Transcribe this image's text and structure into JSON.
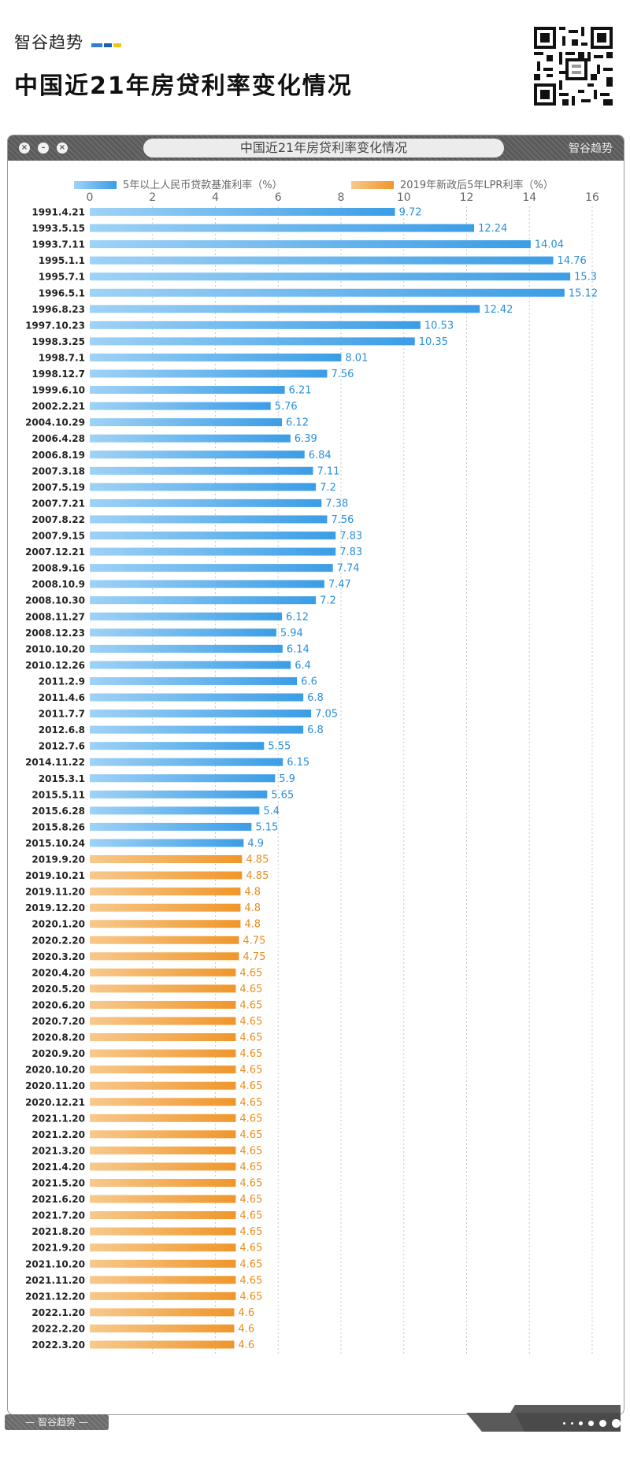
{
  "header": {
    "brand_name": "智谷趋势",
    "title": "中国近21年房贷利率变化情况"
  },
  "window": {
    "title": "中国近21年房贷利率变化情况",
    "logo_text": "智谷趋势",
    "footer_brand": "— 智谷趋势 —"
  },
  "colors": {
    "blue": "#3b9de6",
    "blue_light": "#9fd2f6",
    "orange": "#f0962a",
    "orange_light": "#f7c98d",
    "label_blue": "#2a8fdc",
    "label_orange": "#e98d1e"
  },
  "chart_data": {
    "type": "bar",
    "orientation": "horizontal",
    "xlim": [
      0,
      16
    ],
    "xticks": [
      0,
      2,
      4,
      6,
      8,
      10,
      12,
      14,
      16
    ],
    "grid": true,
    "legend_position": "top",
    "series": [
      {
        "name": "5年以上人民币贷款基准利率（%）",
        "color": "#3b9de6",
        "categories": [
          "1991.4.21",
          "1993.5.15",
          "1993.7.11",
          "1995.1.1",
          "1995.7.1",
          "1996.5.1",
          "1996.8.23",
          "1997.10.23",
          "1998.3.25",
          "1998.7.1",
          "1998.12.7",
          "1999.6.10",
          "2002.2.21",
          "2004.10.29",
          "2006.4.28",
          "2006.8.19",
          "2007.3.18",
          "2007.5.19",
          "2007.7.21",
          "2007.8.22",
          "2007.9.15",
          "2007.12.21",
          "2008.9.16",
          "2008.10.9",
          "2008.10.30",
          "2008.11.27",
          "2008.12.23",
          "2010.10.20",
          "2010.12.26",
          "2011.2.9",
          "2011.4.6",
          "2011.7.7",
          "2012.6.8",
          "2012.7.6",
          "2014.11.22",
          "2015.3.1",
          "2015.5.11",
          "2015.6.28",
          "2015.8.26",
          "2015.10.24"
        ],
        "values": [
          9.72,
          12.24,
          14.04,
          14.76,
          15.3,
          15.12,
          12.42,
          10.53,
          10.35,
          8.01,
          7.56,
          6.21,
          5.76,
          6.12,
          6.39,
          6.84,
          7.11,
          7.2,
          7.38,
          7.56,
          7.83,
          7.83,
          7.74,
          7.47,
          7.2,
          6.12,
          5.94,
          6.14,
          6.4,
          6.6,
          6.8,
          7.05,
          6.8,
          5.55,
          6.15,
          5.9,
          5.65,
          5.4,
          5.15,
          4.9
        ]
      },
      {
        "name": "2019年新政后5年LPR利率（%）",
        "color": "#f0962a",
        "categories": [
          "2019.9.20",
          "2019.10.21",
          "2019.11.20",
          "2019.12.20",
          "2020.1.20",
          "2020.2.20",
          "2020.3.20",
          "2020.4.20",
          "2020.5.20",
          "2020.6.20",
          "2020.7.20",
          "2020.8.20",
          "2020.9.20",
          "2020.10.20",
          "2020.11.20",
          "2020.12.21",
          "2021.1.20",
          "2021.2.20",
          "2021.3.20",
          "2021.4.20",
          "2021.5.20",
          "2021.6.20",
          "2021.7.20",
          "2021.8.20",
          "2021.9.20",
          "2021.10.20",
          "2021.11.20",
          "2021.12.20",
          "2022.1.20",
          "2022.2.20",
          "2022.3.20"
        ],
        "values": [
          4.85,
          4.85,
          4.8,
          4.8,
          4.8,
          4.75,
          4.75,
          4.65,
          4.65,
          4.65,
          4.65,
          4.65,
          4.65,
          4.65,
          4.65,
          4.65,
          4.65,
          4.65,
          4.65,
          4.65,
          4.65,
          4.65,
          4.65,
          4.65,
          4.65,
          4.65,
          4.65,
          4.65,
          4.6,
          4.6,
          4.6
        ]
      }
    ]
  }
}
